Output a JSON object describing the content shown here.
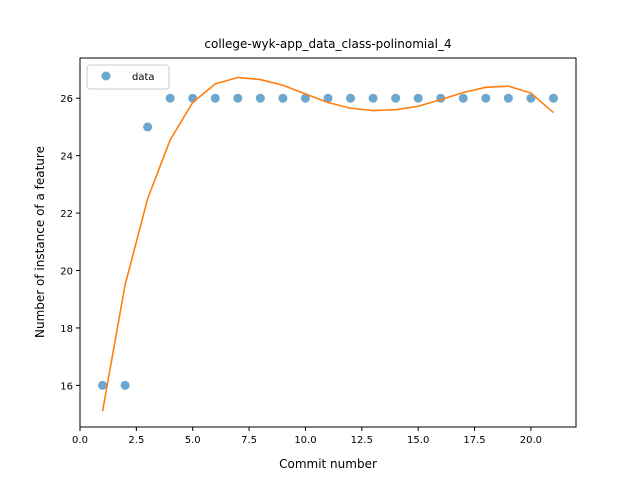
{
  "chart_data": {
    "type": "scatter",
    "title": "college-wyk-app_data_class-polinomial_4",
    "xlabel": "Commit number",
    "ylabel": "Number of instance of a feature",
    "xlim": [
      0.0,
      22.0
    ],
    "ylim": [
      14.55,
      27.4
    ],
    "xticks": [
      "0.0",
      "2.5",
      "5.0",
      "7.5",
      "10.0",
      "12.5",
      "15.0",
      "17.5",
      "20.0"
    ],
    "yticks": [
      "16",
      "18",
      "20",
      "22",
      "24",
      "26"
    ],
    "grid": false,
    "legend_position": "top-left",
    "series": [
      {
        "name": "data",
        "kind": "scatter",
        "color": "#1f77b4",
        "x": [
          1,
          2,
          3,
          4,
          5,
          6,
          7,
          8,
          9,
          10,
          11,
          12,
          13,
          14,
          15,
          16,
          17,
          18,
          19,
          20,
          21
        ],
        "y": [
          16,
          16,
          25,
          26,
          26,
          26,
          26,
          26,
          26,
          26,
          26,
          26,
          26,
          26,
          26,
          26,
          26,
          26,
          26,
          26,
          26
        ]
      },
      {
        "kind": "line",
        "color": "#ff7f0e",
        "x": [
          1,
          2,
          3,
          4,
          5,
          6,
          7,
          8,
          9,
          10,
          11,
          12,
          13,
          14,
          15,
          16,
          17,
          18,
          19,
          20,
          21
        ],
        "y": [
          15.1,
          19.5,
          22.5,
          24.55,
          25.85,
          26.5,
          26.72,
          26.65,
          26.45,
          26.15,
          25.85,
          25.65,
          25.57,
          25.6,
          25.72,
          25.95,
          26.2,
          26.38,
          26.42,
          26.18,
          25.5
        ]
      }
    ]
  }
}
